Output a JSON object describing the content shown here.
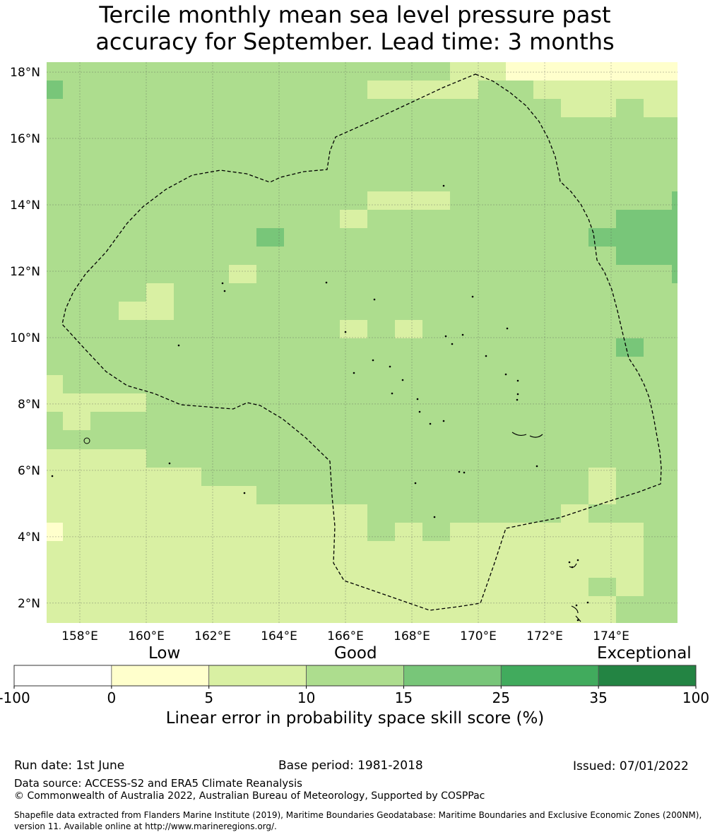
{
  "title_line1": "Tercile monthly mean sea level pressure past",
  "title_line2": "accuracy for September. Lead time: 3 months",
  "map": {
    "lon_range": [
      157.0,
      176.0
    ],
    "lat_range": [
      1.4,
      18.3
    ],
    "lon_ticks": [
      "158°E",
      "160°E",
      "162°E",
      "164°E",
      "166°E",
      "168°E",
      "170°E",
      "172°E",
      "174°E"
    ],
    "lat_ticks": [
      "2°N",
      "4°N",
      "6°N",
      "8°N",
      "10°N",
      "12°N",
      "14°N",
      "16°N",
      "18°N"
    ],
    "gridlines": true,
    "colors": {
      "band_0_5": "#ffffcc",
      "band_5_10": "#d9f0a3",
      "band_10_15": "#addd8e",
      "band_15_25": "#78c679",
      "band_25_35": "#41ab5d",
      "band_35_100": "#238443"
    }
  },
  "colorbar": {
    "categories": [
      "Low",
      "Good",
      "Exceptional"
    ],
    "ticks": [
      "-100",
      "0",
      "5",
      "10",
      "15",
      "25",
      "35",
      "100"
    ],
    "colors": [
      "#ffffff",
      "#ffffcc",
      "#d9f0a3",
      "#addd8e",
      "#78c679",
      "#41ab5d",
      "#238443"
    ],
    "label": "Linear error in probability space skill score (%)"
  },
  "footer": {
    "run_date": "Run date: 1st June",
    "base_period": "Base period: 1981-2018",
    "issued": "Issued: 07/01/2022",
    "data_source": "Data source: ACCESS-S2 and ERA5 Climate Reanalysis",
    "copyright": "© Commonwealth of Australia 2022, Australian Bureau of Meteorology, Supported by COSPPac",
    "shapefile_line1": "Shapefile data extracted from Flanders Marine Institute (2019), Maritime Boundaries Geodatabase: Maritime Boundaries and Exclusive Economic Zones (200NM),",
    "shapefile_line2": "version 11. Available online at http://www.marineregions.org/."
  }
}
